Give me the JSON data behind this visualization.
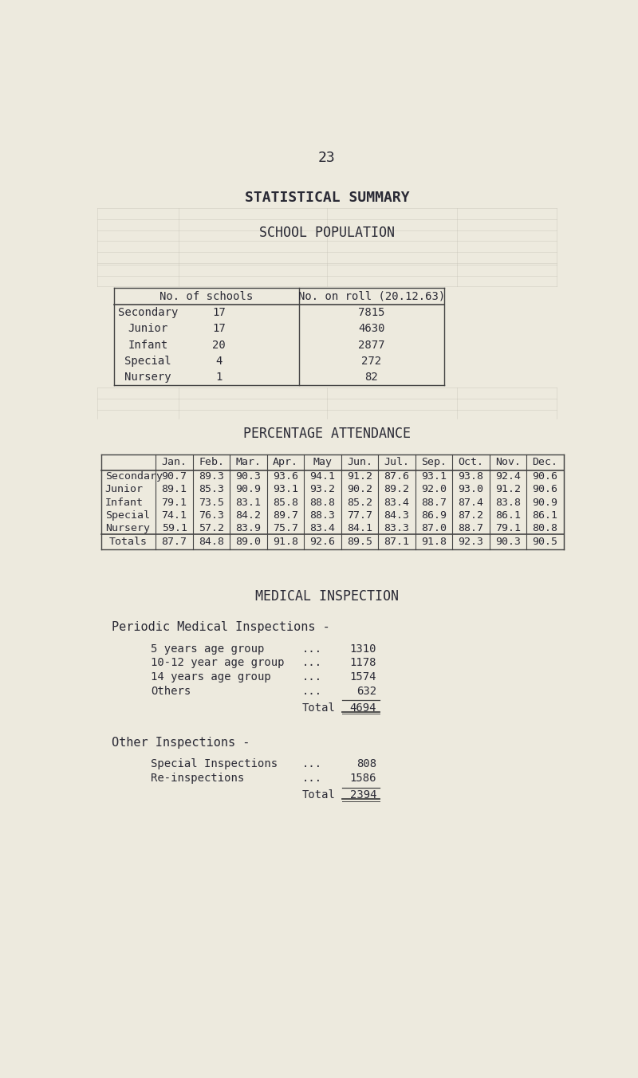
{
  "page_number": "23",
  "bg_color": "#edeade",
  "title1": "STATISTICAL SUMMARY",
  "title2": "SCHOOL POPULATION",
  "pop_headers": [
    "No. of schools",
    "No. on roll (20.12.63)"
  ],
  "pop_rows": [
    [
      "Secondary",
      "17",
      "7815"
    ],
    [
      "Junior",
      "17",
      "4630"
    ],
    [
      "Infant",
      "20",
      "2877"
    ],
    [
      "Special",
      "4",
      "272"
    ],
    [
      "Nursery",
      "1",
      "82"
    ]
  ],
  "att_title": "PERCENTAGE ATTENDANCE",
  "att_months": [
    "Jan.",
    "Feb.",
    "Mar.",
    "Apr.",
    "May",
    "Jun.",
    "Jul.",
    "Sep.",
    "Oct.",
    "Nov.",
    "Dec."
  ],
  "att_rows": [
    [
      "Secondary",
      "90.7",
      "89.3",
      "90.3",
      "93.6",
      "94.1",
      "91.2",
      "87.6",
      "93.1",
      "93.8",
      "92.4",
      "90.6"
    ],
    [
      "Junior",
      "89.1",
      "85.3",
      "90.9",
      "93.1",
      "93.2",
      "90.2",
      "89.2",
      "92.0",
      "93.0",
      "91.2",
      "90.6"
    ],
    [
      "Infant",
      "79.1",
      "73.5",
      "83.1",
      "85.8",
      "88.8",
      "85.2",
      "83.4",
      "88.7",
      "87.4",
      "83.8",
      "90.9"
    ],
    [
      "Special",
      "74.1",
      "76.3",
      "84.2",
      "89.7",
      "88.3",
      "77.7",
      "84.3",
      "86.9",
      "87.2",
      "86.1",
      "86.1"
    ],
    [
      "Nursery",
      "59.1",
      "57.2",
      "83.9",
      "75.7",
      "83.4",
      "84.1",
      "83.3",
      "87.0",
      "88.7",
      "79.1",
      "80.8"
    ]
  ],
  "att_totals": [
    "Totals",
    "87.7",
    "84.8",
    "89.0",
    "91.8",
    "92.6",
    "89.5",
    "87.1",
    "91.8",
    "92.3",
    "90.3",
    "90.5"
  ],
  "med_title": "MEDICAL INSPECTION",
  "periodic_title": "Periodic Medical Inspections -",
  "periodic_items": [
    [
      "5 years age group",
      "...",
      "1310"
    ],
    [
      "10-12 year age group",
      "...",
      "1178"
    ],
    [
      "14 years age group",
      "...",
      "1574"
    ],
    [
      "Others",
      "...",
      "632"
    ]
  ],
  "periodic_total_label": "Total",
  "periodic_total": "4694",
  "other_title": "Other Inspections -",
  "other_items": [
    [
      "Special Inspections",
      "...",
      "808"
    ],
    [
      "Re-inspections",
      "...",
      "1586"
    ]
  ],
  "other_total_label": "Total",
  "other_total": "2394",
  "font_color": "#2a2a35",
  "grid_color": "#c5c2b5",
  "table_border_color": "#444444",
  "mono_font": "monospace",
  "grid_alpha": 0.55,
  "faded_text_color": "#b0aaa0"
}
